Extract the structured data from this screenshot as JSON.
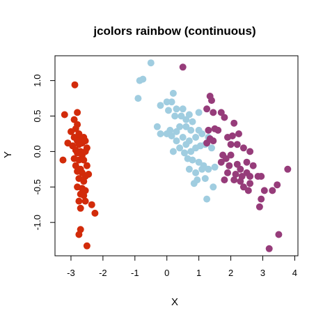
{
  "chart_data": {
    "type": "scatter",
    "title": "jcolors rainbow (continuous)",
    "xlabel": "X",
    "ylabel": "Y",
    "xlim": [
      -3.5,
      4.1
    ],
    "ylim": [
      -1.47,
      1.35
    ],
    "xticks": [
      "-3",
      "-2",
      "-1",
      "0",
      "1",
      "2",
      "3",
      "4"
    ],
    "yticks": [
      "-1.0",
      "-0.5",
      "0.0",
      "0.5",
      "1.0"
    ],
    "grid": false,
    "legend": "none",
    "series": [
      {
        "color": "#d22b0a",
        "points": [
          [
            -3.2,
            0.52
          ],
          [
            -2.88,
            0.94
          ],
          [
            -2.9,
            0.45
          ],
          [
            -3.0,
            0.28
          ],
          [
            -2.8,
            0.55
          ],
          [
            -2.8,
            0.38
          ],
          [
            -2.85,
            0.32
          ],
          [
            -2.75,
            0.25
          ],
          [
            -2.7,
            0.2
          ],
          [
            -2.6,
            0.2
          ],
          [
            -2.9,
            0.2
          ],
          [
            -2.8,
            0.15
          ],
          [
            -2.75,
            0.1
          ],
          [
            -2.65,
            0.12
          ],
          [
            -2.55,
            0.15
          ],
          [
            -3.1,
            0.12
          ],
          [
            -2.95,
            0.08
          ],
          [
            -2.85,
            0.02
          ],
          [
            -2.7,
            0.0
          ],
          [
            -2.5,
            0.05
          ],
          [
            -2.8,
            -0.02
          ],
          [
            -2.65,
            -0.05
          ],
          [
            -2.55,
            0.0
          ],
          [
            -2.9,
            -0.1
          ],
          [
            -2.75,
            -0.12
          ],
          [
            -3.25,
            -0.12
          ],
          [
            -2.6,
            -0.12
          ],
          [
            -2.85,
            -0.2
          ],
          [
            -2.7,
            -0.25
          ],
          [
            -2.5,
            -0.2
          ],
          [
            -2.8,
            -0.28
          ],
          [
            -2.65,
            -0.3
          ],
          [
            -2.55,
            -0.35
          ],
          [
            -2.45,
            -0.32
          ],
          [
            -2.75,
            -0.38
          ],
          [
            -2.6,
            -0.42
          ],
          [
            -2.8,
            -0.5
          ],
          [
            -2.65,
            -0.52
          ],
          [
            -2.55,
            -0.55
          ],
          [
            -2.7,
            -0.6
          ],
          [
            -2.6,
            -0.62
          ],
          [
            -2.75,
            -0.7
          ],
          [
            -2.55,
            -0.7
          ],
          [
            -2.7,
            -0.8
          ],
          [
            -2.35,
            -0.75
          ],
          [
            -2.25,
            -0.87
          ],
          [
            -2.7,
            -1.1
          ],
          [
            -2.75,
            -1.17
          ],
          [
            -2.5,
            -1.33
          ]
        ]
      },
      {
        "color": "#a0cde0",
        "points": [
          [
            -0.5,
            1.25
          ],
          [
            -0.75,
            1.02
          ],
          [
            -0.85,
            1.0
          ],
          [
            -0.9,
            0.75
          ],
          [
            -0.2,
            0.65
          ],
          [
            0.0,
            0.7
          ],
          [
            0.2,
            0.82
          ],
          [
            0.15,
            0.7
          ],
          [
            0.05,
            0.58
          ],
          [
            0.3,
            0.6
          ],
          [
            0.25,
            0.5
          ],
          [
            0.5,
            0.6
          ],
          [
            0.45,
            0.5
          ],
          [
            0.6,
            0.45
          ],
          [
            0.7,
            0.52
          ],
          [
            0.8,
            0.42
          ],
          [
            1.0,
            0.55
          ],
          [
            0.6,
            0.35
          ],
          [
            0.75,
            0.3
          ],
          [
            0.4,
            0.35
          ],
          [
            0.3,
            0.28
          ],
          [
            0.1,
            0.3
          ],
          [
            0.0,
            0.25
          ],
          [
            -0.3,
            0.35
          ],
          [
            -0.2,
            0.25
          ],
          [
            0.15,
            0.22
          ],
          [
            0.3,
            0.15
          ],
          [
            0.5,
            0.2
          ],
          [
            0.7,
            0.15
          ],
          [
            0.9,
            0.2
          ],
          [
            1.0,
            0.3
          ],
          [
            1.1,
            0.25
          ],
          [
            1.3,
            0.2
          ],
          [
            0.6,
            0.1
          ],
          [
            0.4,
            0.05
          ],
          [
            0.2,
            0.0
          ],
          [
            0.55,
            -0.02
          ],
          [
            0.75,
            0.0
          ],
          [
            0.9,
            0.05
          ],
          [
            1.05,
            0.08
          ],
          [
            1.2,
            0.1
          ],
          [
            1.4,
            0.05
          ],
          [
            0.65,
            -0.1
          ],
          [
            0.8,
            -0.12
          ],
          [
            1.0,
            -0.15
          ],
          [
            1.15,
            -0.2
          ],
          [
            0.7,
            -0.25
          ],
          [
            0.9,
            -0.3
          ],
          [
            1.1,
            -0.25
          ],
          [
            1.3,
            -0.25
          ],
          [
            1.5,
            -0.22
          ],
          [
            0.95,
            -0.4
          ],
          [
            1.2,
            -0.38
          ],
          [
            1.45,
            -0.5
          ],
          [
            0.85,
            -0.45
          ],
          [
            1.25,
            -0.67
          ]
        ]
      },
      {
        "color": "#963c7a",
        "points": [
          [
            0.5,
            1.19
          ],
          [
            1.35,
            0.78
          ],
          [
            1.4,
            0.72
          ],
          [
            1.25,
            0.6
          ],
          [
            1.45,
            0.55
          ],
          [
            1.7,
            0.55
          ],
          [
            1.8,
            0.48
          ],
          [
            1.3,
            0.3
          ],
          [
            1.5,
            0.32
          ],
          [
            1.45,
            0.15
          ],
          [
            1.25,
            0.12
          ],
          [
            1.35,
            0.18
          ],
          [
            1.6,
            0.3
          ],
          [
            2.1,
            0.4
          ],
          [
            1.9,
            0.2
          ],
          [
            2.05,
            0.22
          ],
          [
            2.25,
            0.25
          ],
          [
            2.0,
            0.1
          ],
          [
            2.2,
            0.1
          ],
          [
            2.4,
            0.05
          ],
          [
            2.6,
            0.0
          ],
          [
            1.75,
            -0.05
          ],
          [
            1.85,
            -0.1
          ],
          [
            2.0,
            -0.05
          ],
          [
            1.7,
            -0.15
          ],
          [
            1.95,
            -0.2
          ],
          [
            2.2,
            -0.18
          ],
          [
            2.3,
            -0.25
          ],
          [
            2.5,
            -0.15
          ],
          [
            2.7,
            -0.2
          ],
          [
            1.9,
            -0.3
          ],
          [
            2.15,
            -0.32
          ],
          [
            2.35,
            -0.35
          ],
          [
            2.5,
            -0.3
          ],
          [
            2.6,
            -0.35
          ],
          [
            2.85,
            -0.35
          ],
          [
            2.95,
            -0.35
          ],
          [
            2.1,
            -0.4
          ],
          [
            2.3,
            -0.42
          ],
          [
            2.6,
            -0.45
          ],
          [
            1.8,
            -0.4
          ],
          [
            2.4,
            -0.5
          ],
          [
            2.55,
            -0.55
          ],
          [
            3.05,
            -0.55
          ],
          [
            3.3,
            -0.55
          ],
          [
            3.45,
            -0.47
          ],
          [
            3.78,
            -0.25
          ],
          [
            2.95,
            -0.67
          ],
          [
            2.9,
            -0.78
          ],
          [
            3.5,
            -1.17
          ],
          [
            3.2,
            -1.37
          ]
        ]
      }
    ]
  }
}
